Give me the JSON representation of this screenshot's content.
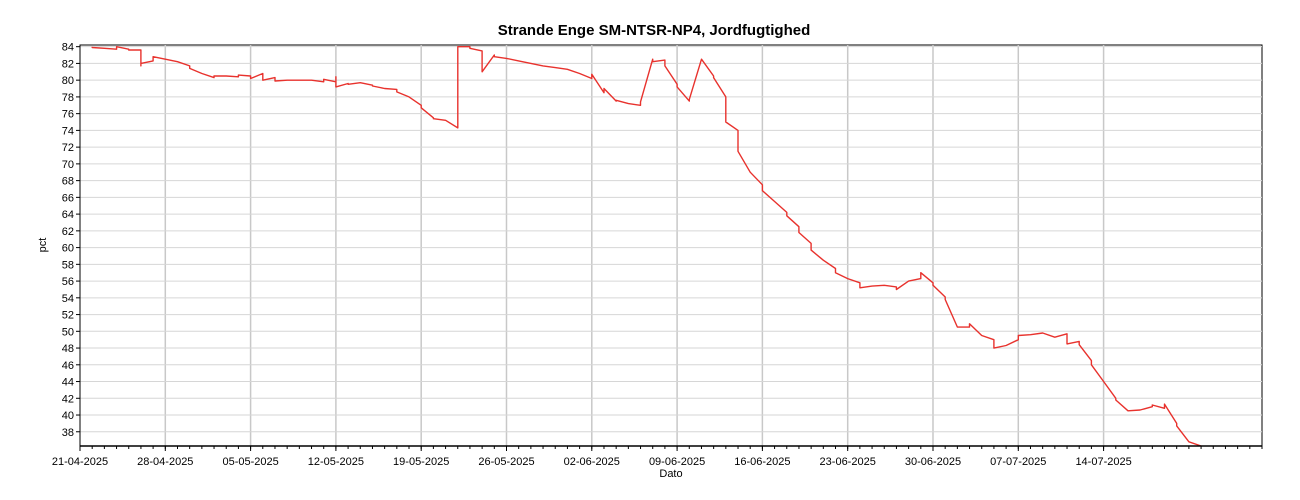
{
  "chart_data": {
    "type": "line",
    "title": "Strande Enge SM-NTSR-NP4, Jordfugtighed",
    "xlabel": "Dato",
    "ylabel": "pct",
    "x_ticks": [
      "21-04-2025",
      "28-04-2025",
      "05-05-2025",
      "12-05-2025",
      "19-05-2025",
      "26-05-2025",
      "02-06-2025",
      "09-06-2025",
      "16-06-2025",
      "23-06-2025",
      "30-06-2025",
      "07-07-2025",
      "14-07-2025"
    ],
    "xlim": [
      "2025-04-21",
      "2025-07-27"
    ],
    "y_ticks": [
      38,
      40,
      42,
      44,
      46,
      48,
      50,
      52,
      54,
      56,
      58,
      60,
      62,
      64,
      66,
      68,
      70,
      72,
      74,
      76,
      78,
      80,
      82,
      84
    ],
    "ylim": [
      36.3,
      84.2
    ],
    "grid": true,
    "line_color": "#e8322d",
    "series": [
      {
        "x": [
          "2025-04-22",
          "2025-04-22",
          "2025-04-23",
          "2025-04-24",
          "2025-04-24",
          "2025-04-25",
          "2025-04-25",
          "2025-04-26",
          "2025-04-26",
          "2025-04-26",
          "2025-04-27",
          "2025-04-27",
          "2025-04-28",
          "2025-04-28",
          "2025-04-29",
          "2025-04-30",
          "2025-04-30",
          "2025-05-01",
          "2025-05-02",
          "2025-05-02",
          "2025-05-03",
          "2025-05-04",
          "2025-05-04",
          "2025-05-05",
          "2025-05-05",
          "2025-05-06",
          "2025-05-06",
          "2025-05-07",
          "2025-05-07",
          "2025-05-08",
          "2025-05-09",
          "2025-05-10",
          "2025-05-11",
          "2025-05-11",
          "2025-05-12",
          "2025-05-12",
          "2025-05-12",
          "2025-05-13",
          "2025-05-13",
          "2025-05-14",
          "2025-05-15",
          "2025-05-15",
          "2025-05-16",
          "2025-05-17",
          "2025-05-17",
          "2025-05-18",
          "2025-05-19",
          "2025-05-19",
          "2025-05-20",
          "2025-05-20",
          "2025-05-21",
          "2025-05-22",
          "2025-05-22",
          "2025-05-22",
          "2025-05-23",
          "2025-05-23",
          "2025-05-24",
          "2025-05-24",
          "2025-05-25",
          "2025-05-25",
          "2025-05-26",
          "2025-05-27",
          "2025-05-28",
          "2025-05-29",
          "2025-05-30",
          "2025-05-31",
          "2025-06-01",
          "2025-06-02",
          "2025-06-02",
          "2025-06-03",
          "2025-06-03",
          "2025-06-04",
          "2025-06-04",
          "2025-06-05",
          "2025-06-06",
          "2025-06-06",
          "2025-06-07",
          "2025-06-07",
          "2025-06-08",
          "2025-06-08",
          "2025-06-09",
          "2025-06-09",
          "2025-06-10",
          "2025-06-10",
          "2025-06-11",
          "2025-06-11",
          "2025-06-12",
          "2025-06-12",
          "2025-06-13",
          "2025-06-13",
          "2025-06-14",
          "2025-06-14",
          "2025-06-15",
          "2025-06-16",
          "2025-06-16",
          "2025-06-17",
          "2025-06-18",
          "2025-06-18",
          "2025-06-19",
          "2025-06-19",
          "2025-06-20",
          "2025-06-20",
          "2025-06-21",
          "2025-06-22",
          "2025-06-22",
          "2025-06-23",
          "2025-06-24",
          "2025-06-24",
          "2025-06-25",
          "2025-06-26",
          "2025-06-27",
          "2025-06-27",
          "2025-06-28",
          "2025-06-29",
          "2025-06-29",
          "2025-06-30",
          "2025-06-30",
          "2025-07-01",
          "2025-07-01",
          "2025-07-02",
          "2025-07-03",
          "2025-07-03",
          "2025-07-04",
          "2025-07-05",
          "2025-07-05",
          "2025-07-06",
          "2025-07-07",
          "2025-07-07",
          "2025-07-08",
          "2025-07-09",
          "2025-07-10",
          "2025-07-11",
          "2025-07-11",
          "2025-07-12",
          "2025-07-12",
          "2025-07-13",
          "2025-07-13",
          "2025-07-14",
          "2025-07-15",
          "2025-07-15",
          "2025-07-16",
          "2025-07-17",
          "2025-07-18",
          "2025-07-18",
          "2025-07-19",
          "2025-07-19",
          "2025-07-20",
          "2025-07-20",
          "2025-07-21",
          "2025-07-22"
        ],
        "y": [
          84.0,
          83.9,
          83.8,
          83.7,
          84.0,
          83.7,
          83.6,
          83.6,
          81.7,
          82.0,
          82.3,
          82.8,
          82.5,
          82.5,
          82.2,
          81.7,
          81.4,
          80.8,
          80.3,
          80.5,
          80.5,
          80.4,
          80.6,
          80.5,
          80.2,
          80.8,
          80.0,
          80.3,
          79.9,
          80.0,
          80.0,
          80.0,
          79.8,
          80.1,
          79.8,
          80.4,
          79.2,
          79.6,
          79.5,
          79.7,
          79.4,
          79.3,
          79.0,
          78.9,
          78.6,
          78.0,
          77.0,
          76.7,
          75.5,
          75.4,
          75.2,
          74.3,
          76.0,
          84.0,
          84.0,
          83.8,
          83.5,
          81.0,
          83.0,
          82.8,
          82.6,
          82.3,
          82.0,
          81.7,
          81.5,
          81.3,
          80.8,
          80.2,
          80.7,
          78.5,
          79.0,
          77.5,
          77.6,
          77.2,
          77.0,
          77.4,
          82.5,
          82.2,
          82.4,
          81.7,
          79.5,
          79.2,
          77.5,
          77.7,
          82.5,
          82.5,
          80.5,
          80.3,
          78.0,
          75.0,
          74.0,
          71.5,
          69.0,
          67.5,
          66.8,
          65.5,
          64.2,
          63.8,
          62.5,
          61.8,
          60.5,
          59.7,
          58.5,
          57.5,
          57.0,
          56.3,
          55.8,
          55.2,
          55.4,
          55.5,
          55.3,
          55.0,
          56.0,
          56.3,
          57.0,
          55.8,
          55.5,
          54.1,
          53.8,
          50.5,
          50.5,
          50.9,
          49.5,
          49.0,
          48.0,
          48.3,
          49.0,
          49.5,
          49.6,
          49.8,
          49.3,
          49.7,
          48.5,
          48.8,
          48.4,
          46.5,
          46.0,
          44.0,
          42.0,
          41.8,
          40.5,
          40.6,
          41.0,
          41.2,
          40.8,
          41.3,
          39.0,
          38.7,
          36.8,
          36.3
        ]
      }
    ]
  }
}
